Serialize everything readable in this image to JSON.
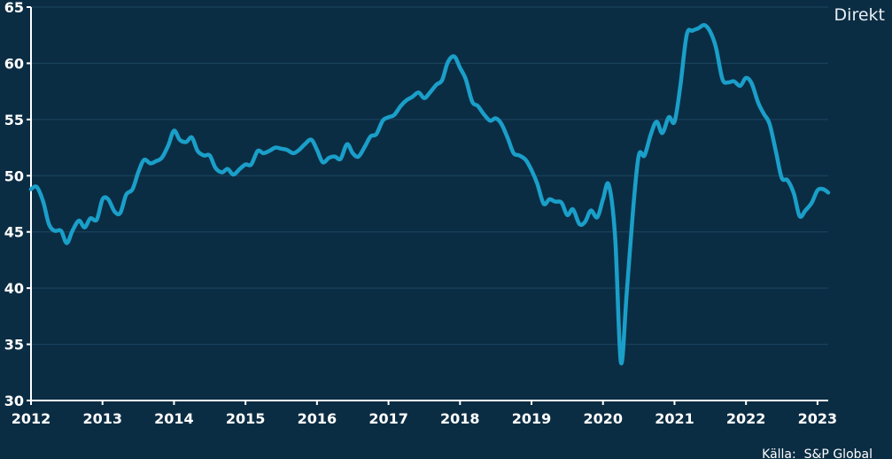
{
  "brand_label": "Direkt",
  "source_label": "Källa:  S&P Global",
  "colors": {
    "background": "#0b2d44",
    "line": "#1a9fc9",
    "axis": "#ffffff",
    "grid": "#1d4660"
  },
  "chart_data": {
    "type": "line",
    "title": "",
    "xlabel": "",
    "ylabel": "",
    "ylim": [
      30,
      65
    ],
    "xlim": [
      2012,
      2023.15
    ],
    "yticks": [
      30,
      35,
      40,
      45,
      50,
      55,
      60,
      65
    ],
    "xticks": [
      "2012",
      "2013",
      "2014",
      "2015",
      "2016",
      "2017",
      "2018",
      "2019",
      "2020",
      "2021",
      "2022",
      "2023"
    ],
    "grid": true,
    "series": [
      {
        "x": [
          2012.0,
          2012.08,
          2012.17,
          2012.25,
          2012.33,
          2012.42,
          2012.5,
          2012.58,
          2012.67,
          2012.75,
          2012.83,
          2012.92,
          2013.0,
          2013.08,
          2013.17,
          2013.25,
          2013.33,
          2013.42,
          2013.5,
          2013.58,
          2013.67,
          2013.75,
          2013.83,
          2013.92,
          2014.0,
          2014.08,
          2014.17,
          2014.25,
          2014.33,
          2014.42,
          2014.5,
          2014.58,
          2014.67,
          2014.75,
          2014.83,
          2014.92,
          2015.0,
          2015.08,
          2015.17,
          2015.25,
          2015.33,
          2015.42,
          2015.5,
          2015.58,
          2015.67,
          2015.75,
          2015.83,
          2015.92,
          2016.0,
          2016.08,
          2016.17,
          2016.25,
          2016.33,
          2016.42,
          2016.5,
          2016.58,
          2016.67,
          2016.75,
          2016.83,
          2016.92,
          2017.0,
          2017.08,
          2017.17,
          2017.25,
          2017.33,
          2017.42,
          2017.5,
          2017.58,
          2017.67,
          2017.75,
          2017.83,
          2017.92,
          2018.0,
          2018.08,
          2018.17,
          2018.25,
          2018.33,
          2018.42,
          2018.5,
          2018.58,
          2018.67,
          2018.75,
          2018.83,
          2018.92,
          2019.0,
          2019.08,
          2019.17,
          2019.25,
          2019.33,
          2019.42,
          2019.5,
          2019.58,
          2019.67,
          2019.75,
          2019.83,
          2019.92,
          2020.0,
          2020.08,
          2020.17,
          2020.25,
          2020.33,
          2020.42,
          2020.5,
          2020.58,
          2020.67,
          2020.75,
          2020.83,
          2020.92,
          2021.0,
          2021.08,
          2021.17,
          2021.25,
          2021.33,
          2021.42,
          2021.5,
          2021.58,
          2021.67,
          2021.75,
          2021.83,
          2021.92,
          2022.0,
          2022.08,
          2022.17,
          2022.25,
          2022.33,
          2022.42,
          2022.5,
          2022.58,
          2022.67,
          2022.75,
          2022.83,
          2022.92,
          2023.0,
          2023.08,
          2023.15
        ],
        "values": [
          48.8,
          49.0,
          47.7,
          45.7,
          45.1,
          45.1,
          44.0,
          45.1,
          46.0,
          45.4,
          46.2,
          46.1,
          47.9,
          47.9,
          46.8,
          46.7,
          48.3,
          48.8,
          50.3,
          51.4,
          51.1,
          51.3,
          51.6,
          52.7,
          54.0,
          53.2,
          53.0,
          53.4,
          52.2,
          51.8,
          51.8,
          50.7,
          50.3,
          50.6,
          50.1,
          50.6,
          51.0,
          51.0,
          52.2,
          52.0,
          52.2,
          52.5,
          52.4,
          52.3,
          52.0,
          52.3,
          52.8,
          53.2,
          52.3,
          51.2,
          51.6,
          51.7,
          51.5,
          52.8,
          52.0,
          51.7,
          52.6,
          53.5,
          53.7,
          54.9,
          55.2,
          55.4,
          56.2,
          56.7,
          57.0,
          57.4,
          56.9,
          57.4,
          58.1,
          58.5,
          60.1,
          60.6,
          59.6,
          58.6,
          56.6,
          56.2,
          55.5,
          54.9,
          55.1,
          54.6,
          53.3,
          52.0,
          51.8,
          51.4,
          50.5,
          49.3,
          47.5,
          47.9,
          47.7,
          47.6,
          46.5,
          47.0,
          45.7,
          45.9,
          46.9,
          46.3,
          47.9,
          49.2,
          44.5,
          33.4,
          39.4,
          46.9,
          51.8,
          51.8,
          53.7,
          54.8,
          53.8,
          55.2,
          54.8,
          57.9,
          62.5,
          62.9,
          63.1,
          63.4,
          62.8,
          61.4,
          58.6,
          58.3,
          58.4,
          58.0,
          58.7,
          58.2,
          56.5,
          55.5,
          54.6,
          52.1,
          49.8,
          49.6,
          48.4,
          46.4,
          46.9,
          47.6,
          48.7,
          48.8,
          48.5
        ]
      }
    ]
  }
}
